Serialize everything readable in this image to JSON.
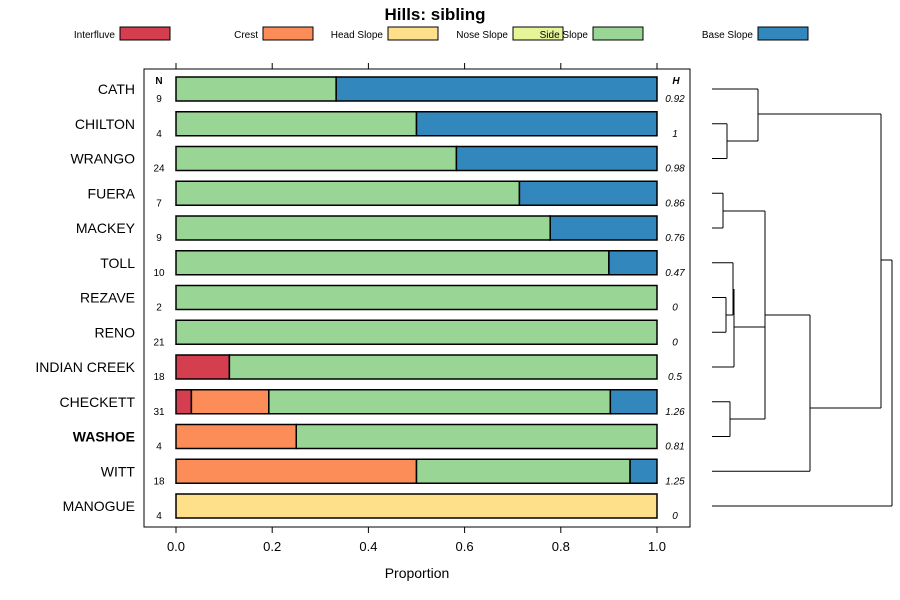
{
  "chart_data": {
    "type": "bar",
    "orientation": "horizontal",
    "stacked": true,
    "title": "Hills: sibling",
    "xlabel": "Proportion",
    "ylabel": "",
    "xlim": [
      0,
      1
    ],
    "xticks": [
      "0.0",
      "0.2",
      "0.4",
      "0.6",
      "0.8",
      "1.0"
    ],
    "n_header": "N",
    "h_header": "H",
    "legend": [
      {
        "name": "Interfluve",
        "color": "#d53e4f"
      },
      {
        "name": "Crest",
        "color": "#fc8d59"
      },
      {
        "name": "Head Slope",
        "color": "#fee08b"
      },
      {
        "name": "Nose Slope",
        "color": "#e6f598"
      },
      {
        "name": "Side Slope",
        "color": "#99d594"
      },
      {
        "name": "Base Slope",
        "color": "#3288bd"
      }
    ],
    "categories": [
      "CATH",
      "CHILTON",
      "WRANGO",
      "FUERA",
      "MACKEY",
      "TOLL",
      "REZAVE",
      "RENO",
      "INDIAN CREEK",
      "CHECKETT",
      "WASHOE",
      "WITT",
      "MANOGUE"
    ],
    "highlight": "WASHOE",
    "n": [
      "9",
      "4",
      "24",
      "7",
      "9",
      "10",
      "2",
      "21",
      "18",
      "31",
      "4",
      "18",
      "4"
    ],
    "h": [
      "0.92",
      "1",
      "0.98",
      "0.86",
      "0.76",
      "0.47",
      "0",
      "0",
      "0.5",
      "1.26",
      "0.81",
      "1.25",
      "0"
    ],
    "series": [
      {
        "name": "Interfluve",
        "values": [
          0,
          0,
          0,
          0,
          0,
          0,
          0,
          0,
          0.111,
          0.032,
          0,
          0,
          0
        ]
      },
      {
        "name": "Crest",
        "values": [
          0,
          0,
          0,
          0,
          0,
          0,
          0,
          0,
          0,
          0.161,
          0.25,
          0.5,
          0
        ]
      },
      {
        "name": "Head Slope",
        "values": [
          0,
          0,
          0,
          0,
          0,
          0,
          0,
          0,
          0,
          0,
          0,
          0,
          1.0
        ]
      },
      {
        "name": "Nose Slope",
        "values": [
          0,
          0,
          0,
          0,
          0,
          0,
          0,
          0,
          0,
          0,
          0,
          0,
          0
        ]
      },
      {
        "name": "Side Slope",
        "values": [
          0.333,
          0.5,
          0.583,
          0.714,
          0.778,
          0.9,
          1.0,
          1.0,
          0.889,
          0.71,
          0.75,
          0.444,
          0
        ]
      },
      {
        "name": "Base Slope",
        "values": [
          0.667,
          0.5,
          0.417,
          0.286,
          0.222,
          0.1,
          0,
          0,
          0,
          0.097,
          0,
          0.056,
          0
        ]
      }
    ],
    "dendrogram": {
      "merges": [
        {
          "left": "CATH",
          "right": "CHILTON_WRANGO",
          "height": 0.88
        },
        {
          "left": "CHILTON",
          "right": "WRANGO",
          "height": 0.3
        },
        {
          "left": "FUERA",
          "right": "MACKEY",
          "height": 0.15
        },
        {
          "left": "TOLL",
          "right": "REZAVE_RENO",
          "height": 0.48
        },
        {
          "left": "REZAVE",
          "right": "RENO",
          "height": 0.28
        },
        {
          "left": "INDIAN CREEK",
          "right": "TOLL_GROUP",
          "height": 0.01
        },
        {
          "left": "CHECKETT",
          "right": "WASHOE",
          "height": 0.35
        },
        {
          "left": "FUERA_MACKEY",
          "right": "TOLL_CHECKETT_WASHOE",
          "height": 0.4
        },
        {
          "left": "MID_GROUP",
          "right": "WITT",
          "height": 1.5
        },
        {
          "left": "ALL_BUT_MANOGUE",
          "right": "MANOGUE",
          "height": 1.5
        }
      ]
    }
  }
}
